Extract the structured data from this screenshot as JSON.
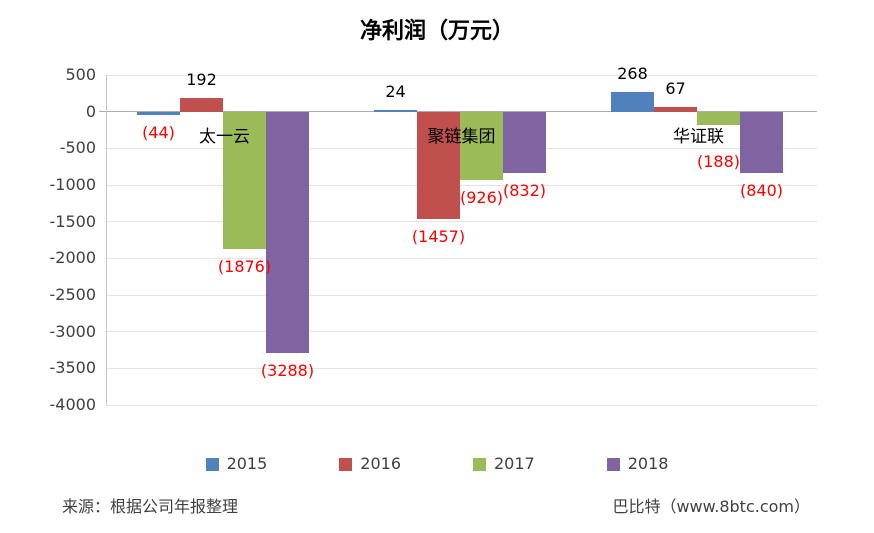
{
  "chart_data": {
    "type": "bar",
    "title": "净利润（万元）",
    "categories": [
      "太一云",
      "聚链集团",
      "华证联"
    ],
    "series": [
      {
        "name": "2015",
        "color": "#4F81BD",
        "values": [
          -44,
          24,
          268
        ]
      },
      {
        "name": "2016",
        "color": "#C0504D",
        "values": [
          192,
          -1457,
          67
        ]
      },
      {
        "name": "2017",
        "color": "#9BBB59",
        "values": [
          -1876,
          -926,
          -188
        ]
      },
      {
        "name": "2018",
        "color": "#8064A2",
        "values": [
          -3288,
          -832,
          -840
        ]
      }
    ],
    "y_axis": {
      "max": 500,
      "min": -4000,
      "step": 500,
      "ticks": [
        500,
        0,
        -500,
        -1000,
        -1500,
        -2000,
        -2500,
        -3000,
        -3500,
        -4000
      ]
    },
    "data_labels": {
      "negative_format": "parentheses",
      "negative_color": "#FF0000",
      "positive_color": "#000000"
    },
    "grid": true,
    "legend_position": "bottom",
    "colors": {
      "gridline": "#E4E4E4",
      "zero_line": "#ACACAC",
      "axis_line": "#C6C6C6"
    }
  },
  "footer": {
    "source": "来源：根据公司年报整理",
    "brand": "巴比特（www.8btc.com）"
  }
}
